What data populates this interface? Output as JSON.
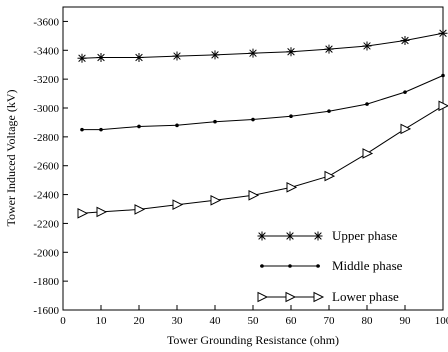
{
  "chart_data": {
    "type": "line",
    "xlabel": "Tower Grounding Resistance (ohm)",
    "ylabel": "Tower Induced Voltage (kV)",
    "xlim": [
      0,
      100
    ],
    "ylim": [
      -1600,
      -3700
    ],
    "y_axis_reversed": true,
    "grid": false,
    "legend_position": "bottom-right",
    "x_ticks": [
      "0",
      "10",
      "20",
      "30",
      "40",
      "50",
      "60",
      "70",
      "80",
      "90",
      "100"
    ],
    "y_ticks": [
      "-1600",
      "-1800",
      "-2000",
      "-2200",
      "-2400",
      "-2600",
      "-2800",
      "-3000",
      "-3200",
      "-3400",
      "-3600"
    ],
    "x": [
      5,
      10,
      20,
      30,
      40,
      50,
      60,
      70,
      80,
      90,
      100
    ],
    "series": [
      {
        "name": "Upper phase",
        "marker": "asterisk",
        "values": [
          -3345,
          -3350,
          -3350,
          -3360,
          -3368,
          -3380,
          -3390,
          -3408,
          -3430,
          -3468,
          -3518
        ]
      },
      {
        "name": "Middle phase",
        "marker": "dot",
        "values": [
          -2850,
          -2850,
          -2872,
          -2880,
          -2905,
          -2920,
          -2943,
          -2978,
          -3027,
          -3110,
          -3225
        ]
      },
      {
        "name": "Lower phase",
        "marker": "triangle-right",
        "values": [
          -2270,
          -2280,
          -2297,
          -2330,
          -2360,
          -2395,
          -2450,
          -2528,
          -2685,
          -2855,
          -3015
        ]
      }
    ]
  }
}
